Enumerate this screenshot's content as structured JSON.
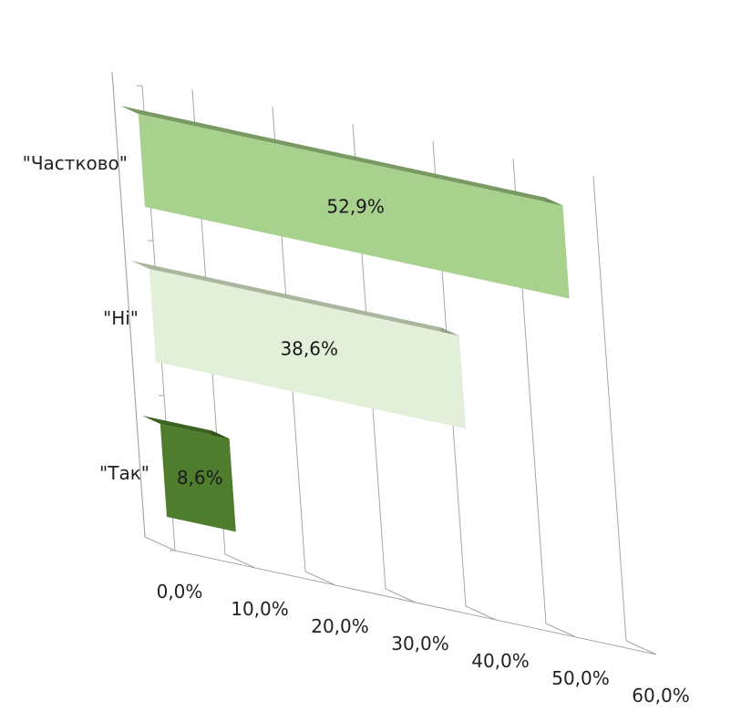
{
  "chart_data": {
    "type": "bar",
    "orientation": "horizontal",
    "three_d": true,
    "categories": [
      "\"Частково\"",
      "\"Ні\"",
      "\"Так\""
    ],
    "values": [
      52.9,
      38.6,
      8.6
    ],
    "value_labels": [
      "52,9%",
      "38,6%",
      "8,6%"
    ],
    "xticks": [
      "0,0%",
      "10,0%",
      "20,0%",
      "30,0%",
      "40,0%",
      "50,0%",
      "60,0%"
    ],
    "xlim": [
      0,
      60
    ],
    "grid": true,
    "legend": "none",
    "title": "",
    "xlabel": "",
    "ylabel": "",
    "colors": {
      "bars": [
        {
          "front": "#a9d18e",
          "top": "#7a9a64",
          "side": "#6d8d58"
        },
        {
          "front": "#e2efd9",
          "top": "#a9b79f",
          "side": "#939f8b"
        },
        {
          "front": "#4e7d2e",
          "top": "#3c6322",
          "side": "#2f4f1b"
        }
      ],
      "grid": "#a6a6a6"
    }
  }
}
